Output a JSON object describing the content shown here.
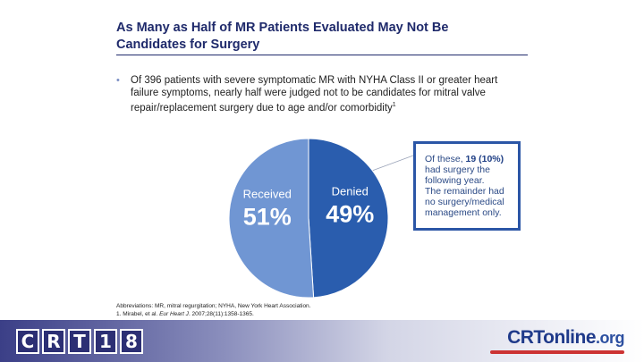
{
  "slide": {
    "title_line1": "As Many as Half of MR Patients Evaluated May Not Be",
    "title_line2": "Candidates for Surgery",
    "bullet_symbol": "•",
    "bullet_text": "Of 396 patients with severe symptomatic MR with NYHA Class II or greater heart failure symptoms, nearly half were judged not to be candidates for mitral valve repair/replacement surgery due to age and/or comorbidity",
    "bullet_sup": "1"
  },
  "callout": {
    "prefix": "Of these, ",
    "highlight": "19 (10%)",
    "line_a": "had surgery the following year.",
    "line_b": "The remainder had no surgery/medical management only."
  },
  "footnotes": {
    "abbreviations": "Abbreviations: MR, mitral regurgitation; NYHA, New York Heart Association.",
    "ref_prefix": "1. Mirabel, et al. ",
    "ref_journal": "Eur Heart J",
    "ref_suffix": ". 2007;28(11):1358-1365."
  },
  "footer": {
    "crt_letters": [
      "C",
      "R",
      "T",
      "1",
      "8"
    ],
    "site_main": "CRTonline",
    "site_tld": ".org"
  },
  "colors": {
    "received": "#7096d3",
    "denied": "#2a5dae",
    "title": "#1f2a6b",
    "callout_border": "#2b56a6"
  },
  "chart_data": {
    "type": "pie",
    "title": "",
    "slices": [
      {
        "label": "Denied",
        "value_label": "49%",
        "value": 49
      },
      {
        "label": "Received",
        "value_label": "51%",
        "value": 51
      }
    ]
  }
}
